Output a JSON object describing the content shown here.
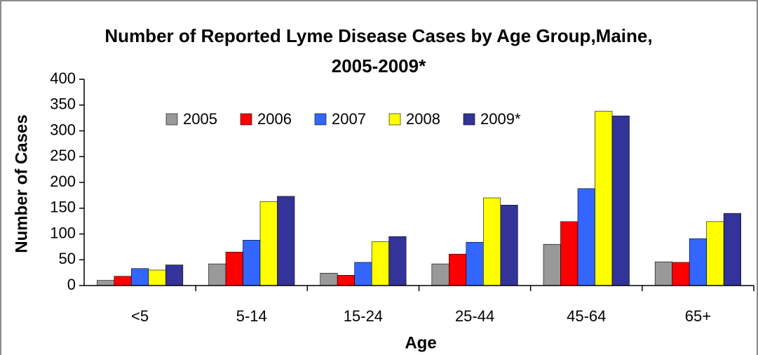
{
  "chart_data": {
    "type": "bar",
    "title": "Number of Reported Lyme Disease Cases by Age Group,Maine, 2005-2009*",
    "x_label": "Age",
    "y_label": "Number of Cases",
    "categories": [
      "<5",
      "5-14",
      "15-24",
      "25-44",
      "45-64",
      "65+"
    ],
    "series": [
      {
        "name": "2005",
        "color": "#999999",
        "values": [
          10,
          42,
          24,
          42,
          80,
          46
        ]
      },
      {
        "name": "2006",
        "color": "#ff0000",
        "values": [
          18,
          65,
          20,
          61,
          124,
          45
        ]
      },
      {
        "name": "2007",
        "color": "#3366ff",
        "values": [
          33,
          88,
          45,
          84,
          188,
          91
        ]
      },
      {
        "name": "2008",
        "color": "#ffff00",
        "values": [
          30,
          163,
          85,
          170,
          338,
          124
        ]
      },
      {
        "name": "2009*",
        "color": "#333399",
        "values": [
          40,
          173,
          95,
          156,
          329,
          140
        ]
      }
    ],
    "ylim": [
      0,
      400
    ],
    "yticks": [
      0,
      50,
      100,
      150,
      200,
      250,
      300,
      350,
      400
    ],
    "grid": false
  }
}
